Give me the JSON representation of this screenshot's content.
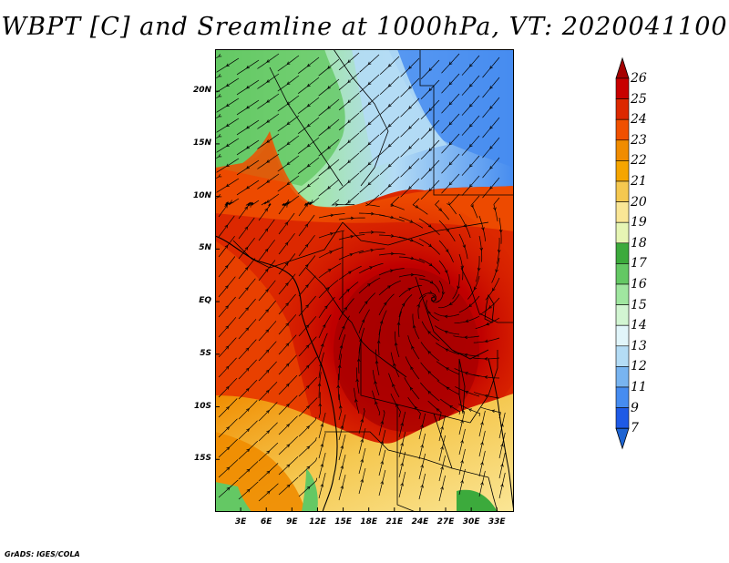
{
  "title": "WBPT [C] and Sreamline at 1000hPa, VT: 2020041100",
  "credit": "GrADS: IGES/COLA",
  "map": {
    "lon_range": [
      0,
      35
    ],
    "lat_range": [
      -20,
      24
    ],
    "lat_labels": [
      {
        "lat": 20,
        "text": "20N"
      },
      {
        "lat": 15,
        "text": "15N"
      },
      {
        "lat": 10,
        "text": "10N"
      },
      {
        "lat": 5,
        "text": "5N"
      },
      {
        "lat": 0,
        "text": "EQ"
      },
      {
        "lat": -5,
        "text": "5S"
      },
      {
        "lat": -10,
        "text": "10S"
      },
      {
        "lat": -15,
        "text": "15S"
      }
    ],
    "lon_labels": [
      {
        "lon": 3,
        "text": "3E"
      },
      {
        "lon": 6,
        "text": "6E"
      },
      {
        "lon": 9,
        "text": "9E"
      },
      {
        "lon": 12,
        "text": "12E"
      },
      {
        "lon": 15,
        "text": "15E"
      },
      {
        "lon": 18,
        "text": "18E"
      },
      {
        "lon": 21,
        "text": "21E"
      },
      {
        "lon": 24,
        "text": "24E"
      },
      {
        "lon": 27,
        "text": "27E"
      },
      {
        "lon": 30,
        "text": "30E"
      },
      {
        "lon": 33,
        "text": "33E"
      }
    ]
  },
  "colorbar": {
    "labels": [
      "26",
      "25",
      "24",
      "23",
      "22",
      "21",
      "20",
      "19",
      "18",
      "17",
      "16",
      "15",
      "14",
      "13",
      "12",
      "11",
      "9",
      "7"
    ],
    "colors": [
      "#a50000",
      "#c80000",
      "#dc2800",
      "#f05000",
      "#f08c00",
      "#f5a500",
      "#f5c850",
      "#fae696",
      "#e6f5b4",
      "#3caa3c",
      "#64c864",
      "#a0e6a0",
      "#d2f5d2",
      "#e1f5fa",
      "#b4dcf5",
      "#78b4f0",
      "#468cf0",
      "#1e5ae6",
      "#1e64d2"
    ]
  }
}
